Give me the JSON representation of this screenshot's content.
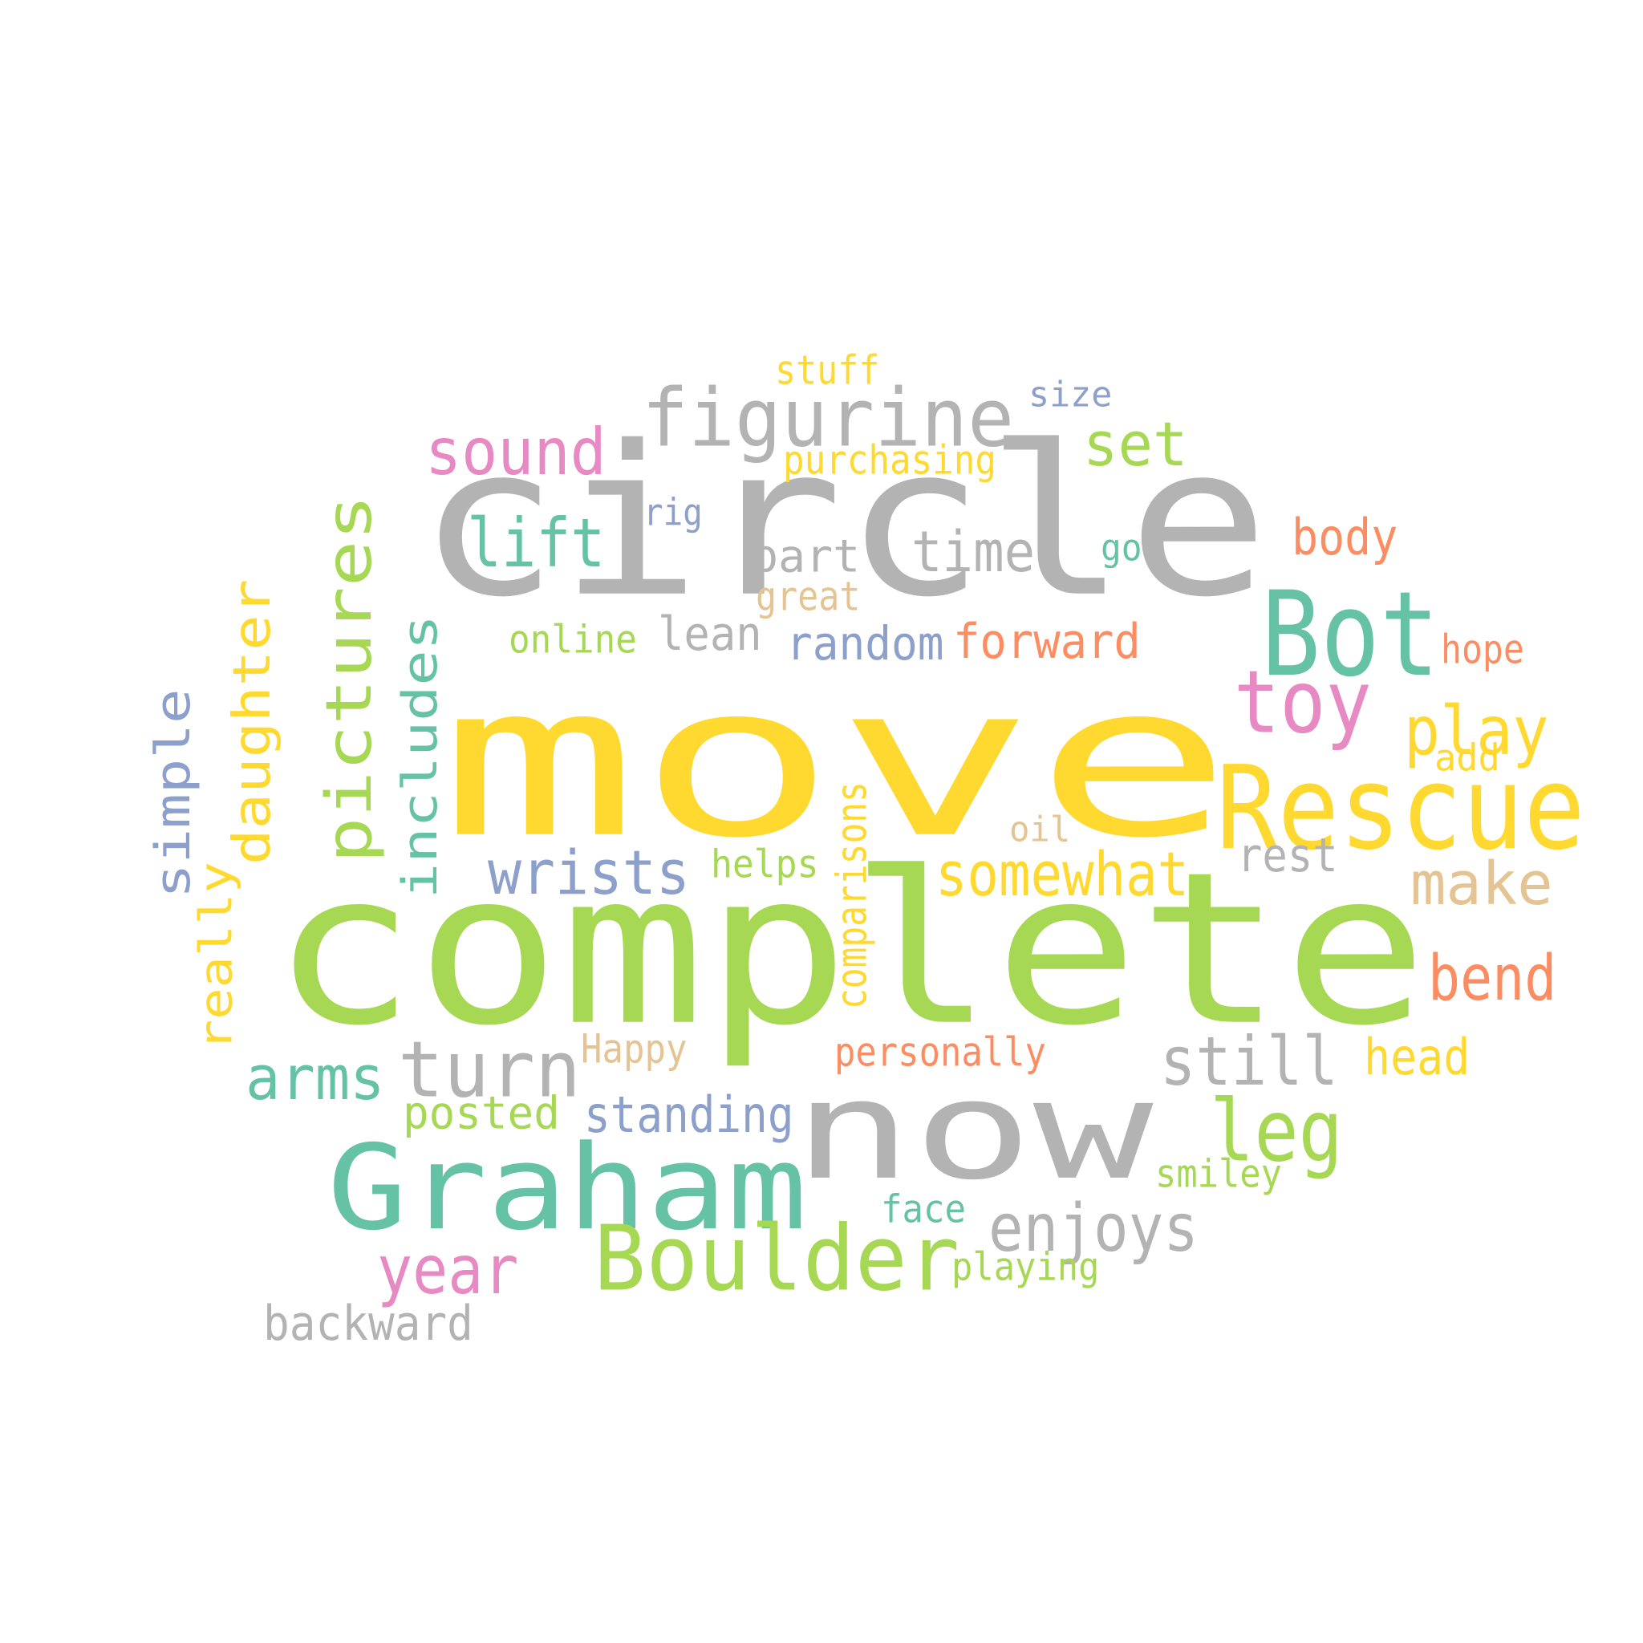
{
  "palette": {
    "yellow": "#ffd92f",
    "green": "#a6d854",
    "gray": "#b3b3b3",
    "teal": "#66c2a5",
    "pink": "#e78ac3",
    "blue": "#8da0cb",
    "orange": "#fc8d62",
    "tan": "#e5c494"
  },
  "words": [
    {
      "text": "move",
      "color": "yellow",
      "orientation": "horizontal"
    },
    {
      "text": "complete",
      "color": "green",
      "orientation": "horizontal"
    },
    {
      "text": "circle",
      "color": "gray",
      "orientation": "horizontal"
    },
    {
      "text": "now",
      "color": "gray",
      "orientation": "horizontal"
    },
    {
      "text": "Graham",
      "color": "teal",
      "orientation": "horizontal"
    },
    {
      "text": "Rescue",
      "color": "yellow",
      "orientation": "horizontal"
    },
    {
      "text": "Bot",
      "color": "teal",
      "orientation": "horizontal"
    },
    {
      "text": "Boulder",
      "color": "green",
      "orientation": "horizontal"
    },
    {
      "text": "figurine",
      "color": "gray",
      "orientation": "horizontal"
    },
    {
      "text": "pictures",
      "color": "green",
      "orientation": "vertical"
    },
    {
      "text": "turn",
      "color": "gray",
      "orientation": "horizontal"
    },
    {
      "text": "leg",
      "color": "green",
      "orientation": "horizontal"
    },
    {
      "text": "toy",
      "color": "pink",
      "orientation": "horizontal"
    },
    {
      "text": "daughter",
      "color": "yellow",
      "orientation": "vertical"
    },
    {
      "text": "includes",
      "color": "teal",
      "orientation": "vertical"
    },
    {
      "text": "sound",
      "color": "pink",
      "orientation": "horizontal"
    },
    {
      "text": "lift",
      "color": "teal",
      "orientation": "horizontal"
    },
    {
      "text": "wrists",
      "color": "blue",
      "orientation": "horizontal"
    },
    {
      "text": "simple",
      "color": "blue",
      "orientation": "vertical"
    },
    {
      "text": "still",
      "color": "gray",
      "orientation": "horizontal"
    },
    {
      "text": "enjoys",
      "color": "gray",
      "orientation": "horizontal"
    },
    {
      "text": "somewhat",
      "color": "yellow",
      "orientation": "horizontal"
    },
    {
      "text": "play",
      "color": "yellow",
      "orientation": "horizontal"
    },
    {
      "text": "arms",
      "color": "teal",
      "orientation": "horizontal"
    },
    {
      "text": "year",
      "color": "pink",
      "orientation": "horizontal"
    },
    {
      "text": "set",
      "color": "green",
      "orientation": "horizontal"
    },
    {
      "text": "time",
      "color": "gray",
      "orientation": "horizontal"
    },
    {
      "text": "make",
      "color": "tan",
      "orientation": "horizontal"
    },
    {
      "text": "bend",
      "color": "orange",
      "orientation": "horizontal"
    },
    {
      "text": "really",
      "color": "yellow",
      "orientation": "vertical"
    },
    {
      "text": "forward",
      "color": "orange",
      "orientation": "horizontal"
    },
    {
      "text": "standing",
      "color": "blue",
      "orientation": "horizontal"
    },
    {
      "text": "backward",
      "color": "gray",
      "orientation": "horizontal"
    },
    {
      "text": "head",
      "color": "yellow",
      "orientation": "horizontal"
    },
    {
      "text": "random",
      "color": "blue",
      "orientation": "horizontal"
    },
    {
      "text": "lean",
      "color": "gray",
      "orientation": "horizontal"
    },
    {
      "text": "body",
      "color": "orange",
      "orientation": "horizontal"
    },
    {
      "text": "part",
      "color": "gray",
      "orientation": "horizontal"
    },
    {
      "text": "rest",
      "color": "gray",
      "orientation": "horizontal"
    },
    {
      "text": "posted",
      "color": "green",
      "orientation": "horizontal"
    },
    {
      "text": "personally",
      "color": "orange",
      "orientation": "horizontal"
    },
    {
      "text": "comparisons",
      "color": "yellow",
      "orientation": "vertical"
    },
    {
      "text": "purchasing",
      "color": "yellow",
      "orientation": "horizontal"
    },
    {
      "text": "playing",
      "color": "green",
      "orientation": "horizontal"
    },
    {
      "text": "Happy",
      "color": "tan",
      "orientation": "horizontal"
    },
    {
      "text": "online",
      "color": "green",
      "orientation": "horizontal"
    },
    {
      "text": "smiley",
      "color": "green",
      "orientation": "horizontal"
    },
    {
      "text": "face",
      "color": "teal",
      "orientation": "horizontal"
    },
    {
      "text": "stuff",
      "color": "yellow",
      "orientation": "horizontal"
    },
    {
      "text": "great",
      "color": "tan",
      "orientation": "horizontal"
    },
    {
      "text": "hope",
      "color": "orange",
      "orientation": "horizontal"
    },
    {
      "text": "helps",
      "color": "green",
      "orientation": "horizontal"
    },
    {
      "text": "size",
      "color": "blue",
      "orientation": "horizontal"
    },
    {
      "text": "rig",
      "color": "blue",
      "orientation": "horizontal"
    },
    {
      "text": "add",
      "color": "yellow",
      "orientation": "horizontal"
    },
    {
      "text": "oil",
      "color": "tan",
      "orientation": "horizontal"
    },
    {
      "text": "go",
      "color": "teal",
      "orientation": "horizontal"
    }
  ]
}
